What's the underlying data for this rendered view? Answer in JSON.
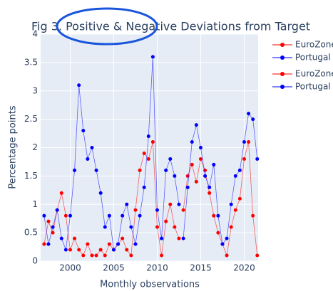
{
  "chart_data": {
    "type": "line",
    "title": "Fig 3. Positive & Negative Deviations from Target",
    "x_label": "Monthly observations",
    "y_label": "Percentage points",
    "x": [
      1997,
      1997.5,
      1998,
      1998.5,
      1999,
      1999.5,
      2000,
      2000.5,
      2001,
      2001.5,
      2002,
      2002.5,
      2003,
      2003.5,
      2004,
      2004.5,
      2005,
      2005.5,
      2006,
      2006.5,
      2007,
      2007.5,
      2008,
      2008.5,
      2009,
      2009.5,
      2010,
      2010.5,
      2011,
      2011.5,
      2012,
      2012.5,
      2013,
      2013.5,
      2014,
      2014.5,
      2015,
      2015.5,
      2016,
      2016.5,
      2017,
      2017.5,
      2018,
      2018.5,
      2019,
      2019.5,
      2020,
      2020.5,
      2021,
      2021.5
    ],
    "series": [
      {
        "name": "EuroZone",
        "color": "#ff0000",
        "values": [
          0.3,
          0.7,
          0.5,
          0.9,
          1.2,
          0.8,
          0.2,
          0.4,
          0.2,
          0.1,
          0.3,
          0.1,
          0.1,
          0.2,
          0.1,
          0.3,
          0.2,
          0.3,
          0.4,
          0.2,
          0.1,
          0.9,
          1.6,
          1.9,
          1.8,
          2.1,
          0.6,
          0.1,
          0.7,
          1.0,
          0.6,
          0.4,
          null,
          null,
          null,
          null,
          null,
          null,
          null,
          null,
          null,
          null,
          null,
          null,
          null,
          null,
          null,
          null,
          null,
          null
        ]
      },
      {
        "name": "Portugal",
        "color": "#0000ff",
        "values": [
          0.8,
          0.3,
          0.6,
          0.9,
          0.4,
          0.2,
          0.8,
          1.6,
          3.1,
          2.3,
          1.8,
          2.0,
          1.6,
          1.2,
          0.6,
          0.8,
          0.2,
          0.3,
          0.8,
          1.0,
          0.6,
          0.3,
          0.8,
          1.3,
          2.2,
          3.6,
          0.9,
          0.4,
          1.6,
          1.8,
          1.5,
          1.0,
          null,
          null,
          null,
          null,
          null,
          null,
          null,
          null,
          null,
          null,
          null,
          null,
          null,
          null,
          null,
          null,
          null,
          null
        ]
      },
      {
        "name": "EuroZone",
        "color": "#ff0000",
        "values": [
          null,
          null,
          null,
          null,
          null,
          null,
          null,
          null,
          null,
          null,
          null,
          null,
          null,
          null,
          null,
          null,
          null,
          null,
          null,
          null,
          null,
          null,
          null,
          null,
          null,
          null,
          null,
          null,
          null,
          null,
          null,
          null,
          0.9,
          1.5,
          1.7,
          1.4,
          1.8,
          1.6,
          1.2,
          0.8,
          0.5,
          0.3,
          0.1,
          0.6,
          0.9,
          1.1,
          1.8,
          2.1,
          0.8,
          0.1
        ]
      },
      {
        "name": "Portugal",
        "color": "#0000ff",
        "values": [
          null,
          null,
          null,
          null,
          null,
          null,
          null,
          null,
          null,
          null,
          null,
          null,
          null,
          null,
          null,
          null,
          null,
          null,
          null,
          null,
          null,
          null,
          null,
          null,
          null,
          null,
          null,
          null,
          null,
          null,
          null,
          null,
          0.4,
          1.3,
          2.1,
          2.4,
          2.0,
          1.5,
          1.3,
          1.7,
          0.8,
          0.3,
          0.4,
          1.0,
          1.5,
          1.6,
          2.1,
          2.6,
          2.5,
          1.8
        ]
      }
    ],
    "xlim": [
      1996.6,
      2021.6
    ],
    "xticks": [
      2000,
      2005,
      2010,
      2015,
      2020
    ],
    "ylim": [
      0,
      4
    ],
    "yticks": [
      0,
      0.5,
      1,
      1.5,
      2,
      2.5,
      3,
      3.5,
      4
    ],
    "grid": true,
    "legend": "right"
  }
}
